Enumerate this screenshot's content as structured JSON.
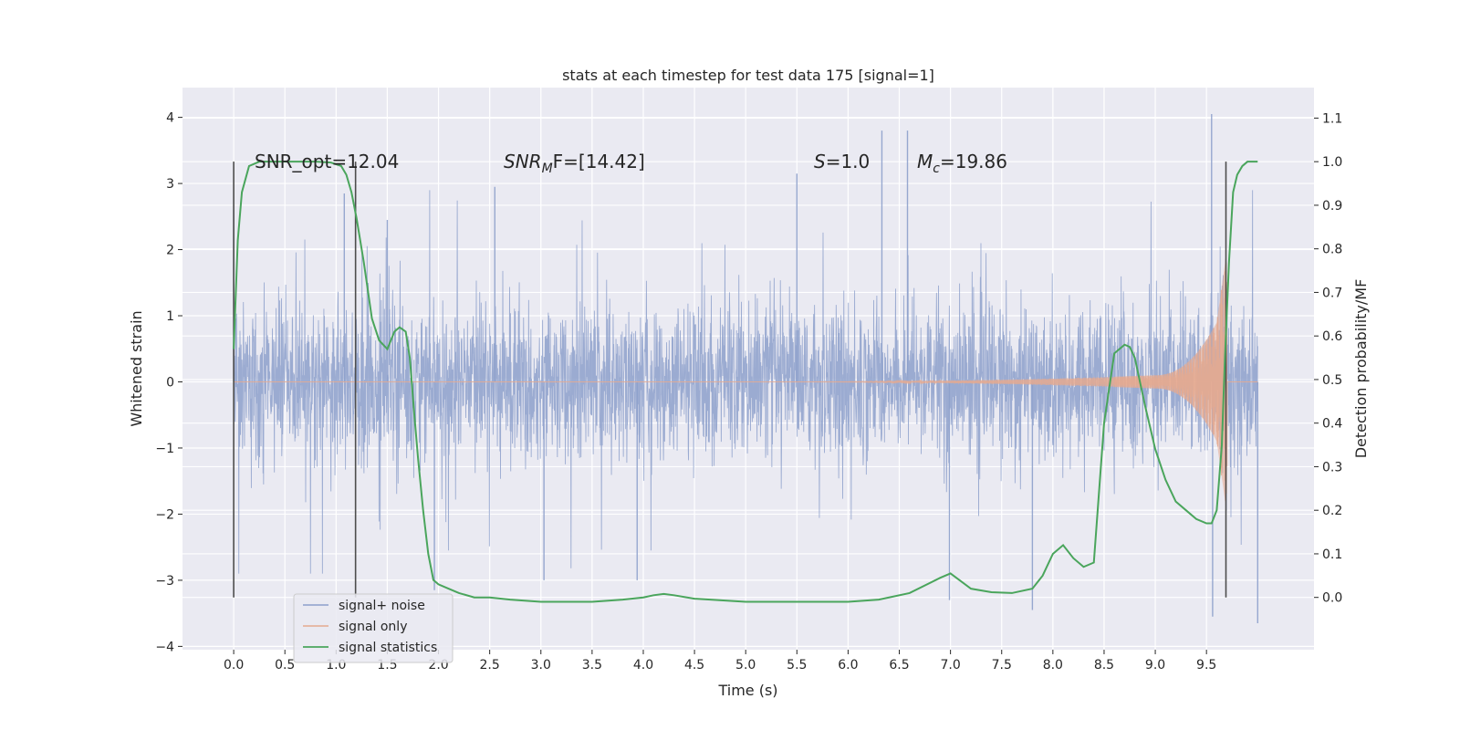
{
  "chart_data": {
    "type": "line",
    "title": "stats at each timestep for test data 175 [signal=1]",
    "xlabel": "Time (s)",
    "ylabel_left": "Whitened strain",
    "ylabel_right": "Detection probability/MF",
    "xlim": [
      -0.5,
      10.55
    ],
    "ylim_left": [
      -4.05,
      4.45
    ],
    "ylim_right": [
      -0.12,
      1.17
    ],
    "xticks": [
      0.0,
      0.5,
      1.0,
      1.5,
      2.0,
      2.5,
      3.0,
      3.5,
      4.0,
      4.5,
      5.0,
      5.5,
      6.0,
      6.5,
      7.0,
      7.5,
      8.0,
      8.5,
      9.0,
      9.5
    ],
    "xtick_labels": [
      "0.0",
      "0.5",
      "1.0",
      "1.5",
      "2.0",
      "2.5",
      "3.0",
      "3.5",
      "4.0",
      "4.5",
      "5.0",
      "5.5",
      "6.0",
      "6.5",
      "7.0",
      "7.5",
      "8.0",
      "8.5",
      "9.0",
      "9.5"
    ],
    "yticks_left": [
      4,
      3,
      2,
      1,
      0,
      -1,
      -2,
      -3,
      -4
    ],
    "ytick_labels_left": [
      "4",
      "3",
      "2",
      "1",
      "0",
      "−1",
      "−2",
      "−3",
      "−4"
    ],
    "yticks_right": [
      1.1,
      1.0,
      0.9,
      0.8,
      0.7,
      0.6,
      0.5,
      0.4,
      0.3,
      0.2,
      0.1,
      0.0
    ],
    "ytick_labels_right": [
      "1.1",
      "1.0",
      "0.9",
      "0.8",
      "0.7",
      "0.6",
      "0.5",
      "0.4",
      "0.3",
      "0.2",
      "0.1",
      "0.0"
    ],
    "grid": true,
    "legend_position": "bottom-left",
    "annotations": {
      "snr_opt": "SNR_opt=12.04",
      "snr_mf": "SNR_MF=[14.42]",
      "snr_mf_prefix": "SNR",
      "snr_mf_sub": "M",
      "snr_mf_suffix": "F=[14.42]",
      "s_value": "S=1.0",
      "s_italic": "S",
      "s_rest": "=1.0",
      "mc_value": "M_c=19.86",
      "mc_italic": "M",
      "mc_sub": "c",
      "mc_rest": "=19.86"
    },
    "vlines_x": [
      0.0,
      1.19,
      9.69
    ],
    "noise_band": {
      "x_start": 0.0,
      "x_end": 10.0,
      "typical_envelope": [
        -1.2,
        1.4
      ],
      "max": 4.05,
      "min": -3.65
    },
    "noise_spikes": [
      {
        "x": 0.0,
        "y": 2.6
      },
      {
        "x": 1.08,
        "y": 2.85
      },
      {
        "x": 1.5,
        "y": 2.45
      },
      {
        "x": 1.96,
        "y": -3.15
      },
      {
        "x": 2.55,
        "y": 2.95
      },
      {
        "x": 3.03,
        "y": -3.0
      },
      {
        "x": 3.94,
        "y": -3.0
      },
      {
        "x": 5.5,
        "y": 3.15
      },
      {
        "x": 6.33,
        "y": 3.8
      },
      {
        "x": 6.58,
        "y": 3.8
      },
      {
        "x": 6.99,
        "y": -3.3
      },
      {
        "x": 7.8,
        "y": -3.45
      },
      {
        "x": 9.55,
        "y": 4.05
      },
      {
        "x": 9.56,
        "y": -3.55
      },
      {
        "x": 10.0,
        "y": -3.65
      }
    ],
    "signal_only": {
      "x_start": 0.0,
      "x_end": 10.0,
      "chirp_start": 5.5,
      "amplitude_at_9_0": 0.1,
      "amplitude_at_9_6": 0.9,
      "amplitude_at_9_7": 2.0
    },
    "series": [
      {
        "name": "signal+ noise",
        "color": "#8da0cb"
      },
      {
        "name": "signal only",
        "color": "#e5a98f"
      },
      {
        "name": "signal statistics",
        "color": "#4aa55c",
        "x": [
          0.0,
          0.04,
          0.08,
          0.15,
          0.25,
          0.4,
          0.6,
          0.8,
          0.95,
          1.05,
          1.1,
          1.15,
          1.2,
          1.27,
          1.35,
          1.42,
          1.5,
          1.57,
          1.62,
          1.68,
          1.72,
          1.76,
          1.8,
          1.85,
          1.9,
          1.95,
          2.0,
          2.1,
          2.2,
          2.35,
          2.5,
          2.7,
          3.0,
          3.5,
          3.8,
          4.0,
          4.1,
          4.2,
          4.3,
          4.5,
          5.0,
          5.5,
          6.0,
          6.3,
          6.6,
          6.9,
          7.0,
          7.2,
          7.4,
          7.6,
          7.8,
          7.9,
          8.0,
          8.1,
          8.2,
          8.3,
          8.4,
          8.5,
          8.6,
          8.7,
          8.75,
          8.8,
          8.9,
          9.0,
          9.1,
          9.2,
          9.3,
          9.4,
          9.5,
          9.55,
          9.6,
          9.65,
          9.68,
          9.72,
          9.76,
          9.8,
          9.85,
          9.9,
          9.95,
          10.0
        ],
        "values": [
          0.57,
          0.82,
          0.93,
          0.99,
          1.0,
          1.0,
          1.0,
          1.0,
          0.998,
          0.99,
          0.97,
          0.93,
          0.87,
          0.77,
          0.64,
          0.59,
          0.57,
          0.61,
          0.62,
          0.61,
          0.55,
          0.43,
          0.32,
          0.2,
          0.1,
          0.04,
          0.03,
          0.02,
          0.01,
          0.0,
          0.0,
          -0.005,
          -0.01,
          -0.01,
          -0.005,
          0.0,
          0.005,
          0.008,
          0.005,
          -0.003,
          -0.01,
          -0.01,
          -0.01,
          -0.005,
          0.01,
          0.045,
          0.055,
          0.02,
          0.012,
          0.01,
          0.02,
          0.05,
          0.1,
          0.12,
          0.09,
          0.07,
          0.08,
          0.4,
          0.56,
          0.58,
          0.575,
          0.55,
          0.44,
          0.34,
          0.27,
          0.22,
          0.2,
          0.18,
          0.17,
          0.17,
          0.2,
          0.35,
          0.55,
          0.77,
          0.93,
          0.97,
          0.99,
          1.0,
          1.0,
          1.0
        ]
      }
    ]
  }
}
